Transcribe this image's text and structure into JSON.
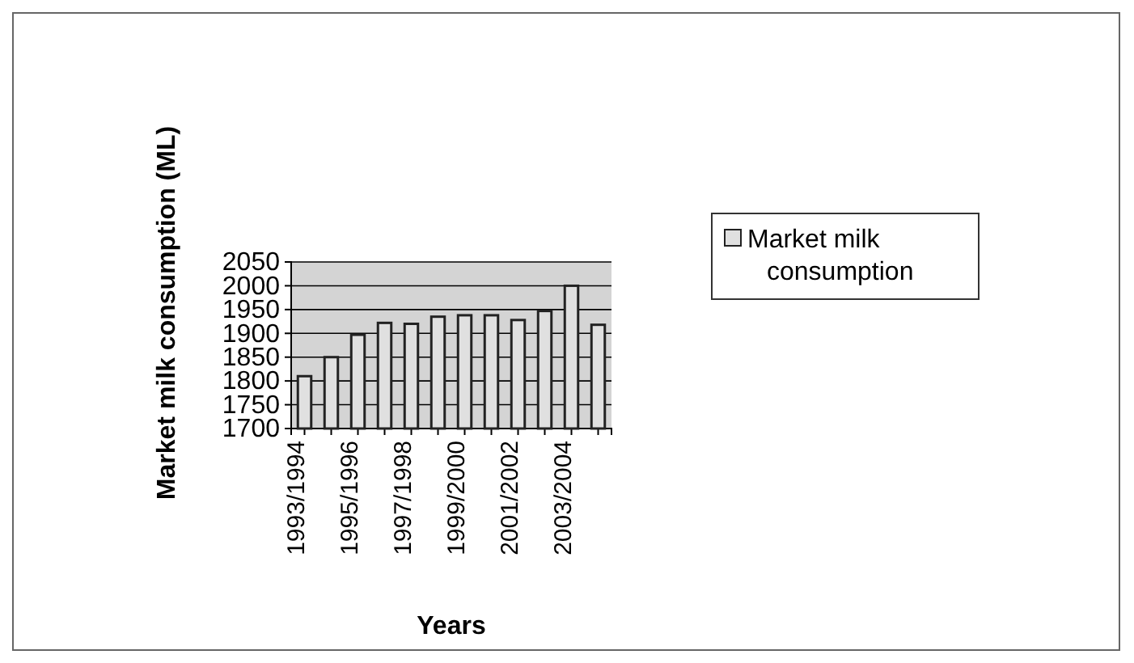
{
  "chart_data": {
    "type": "bar",
    "xlabel": "Years",
    "ylabel": "Market milk consumption (ML)",
    "categories": [
      "1993/1994",
      null,
      "1995/1996",
      null,
      "1997/1998",
      null,
      "1999/2000",
      null,
      "2001/2002",
      null,
      "2003/2004",
      null
    ],
    "series": [
      {
        "name": "Market milk consumption",
        "color": "#e0e0e0",
        "values": [
          1810,
          1850,
          1897,
          1922,
          1920,
          1935,
          1938,
          1938,
          1928,
          1947,
          2000,
          1918
        ]
      }
    ],
    "ylim": [
      1700,
      2050
    ],
    "yticks": [
      1700,
      1750,
      1800,
      1850,
      1900,
      1950,
      2000,
      2050
    ],
    "grid": "y",
    "legend": "right"
  }
}
